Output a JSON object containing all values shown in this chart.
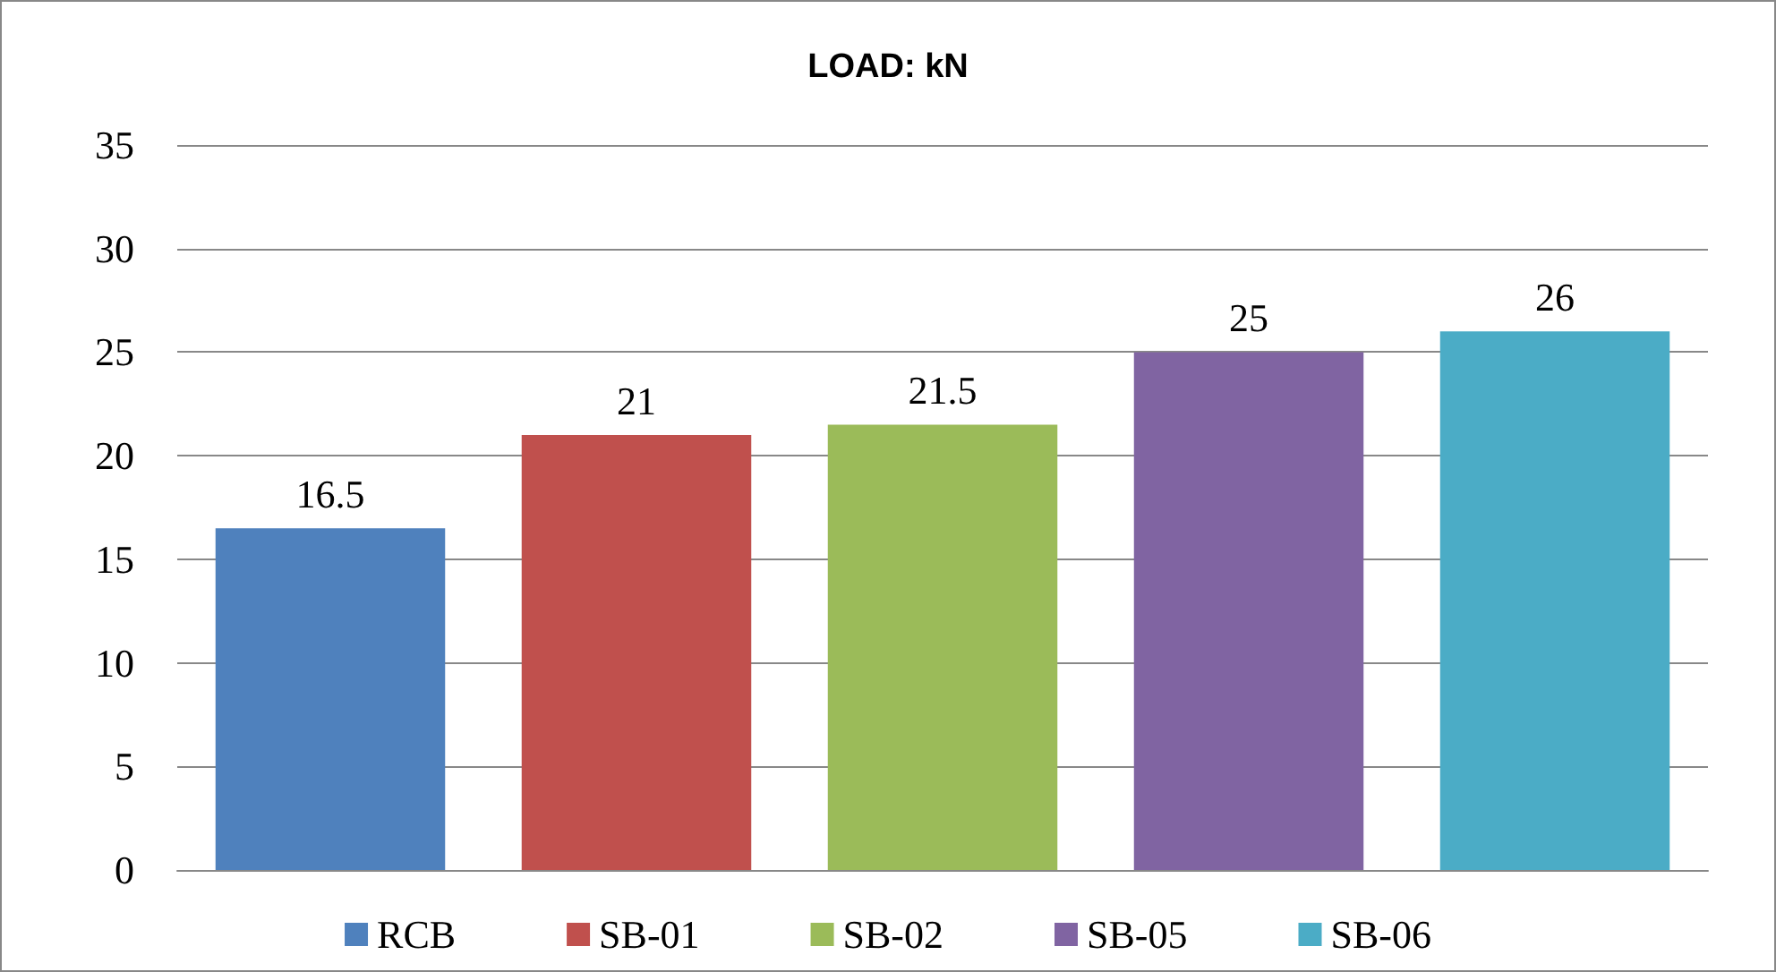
{
  "chart_data": {
    "type": "bar",
    "title": "LOAD: kN",
    "categories": [
      null,
      null,
      null,
      null,
      null
    ],
    "series": [
      {
        "name": "RCB",
        "color": "#4f81bd",
        "values": [
          16.5,
          null,
          null,
          null,
          null
        ]
      },
      {
        "name": "SB-01",
        "color": "#c0504d",
        "values": [
          null,
          21,
          null,
          null,
          null
        ]
      },
      {
        "name": "SB-02",
        "color": "#9bbb59",
        "values": [
          null,
          null,
          21.5,
          null,
          null
        ]
      },
      {
        "name": "SB-05",
        "color": "#8064a2",
        "values": [
          null,
          null,
          null,
          25,
          null
        ]
      },
      {
        "name": "SB-06",
        "color": "#4bacc6",
        "values": [
          null,
          null,
          null,
          null,
          26
        ]
      }
    ],
    "ylim": [
      0,
      35
    ],
    "yticks": [
      0,
      5,
      10,
      15,
      20,
      25,
      30,
      35
    ],
    "grid": "y",
    "legend": "bottom",
    "data_labels": true,
    "tick_labels": "y"
  }
}
